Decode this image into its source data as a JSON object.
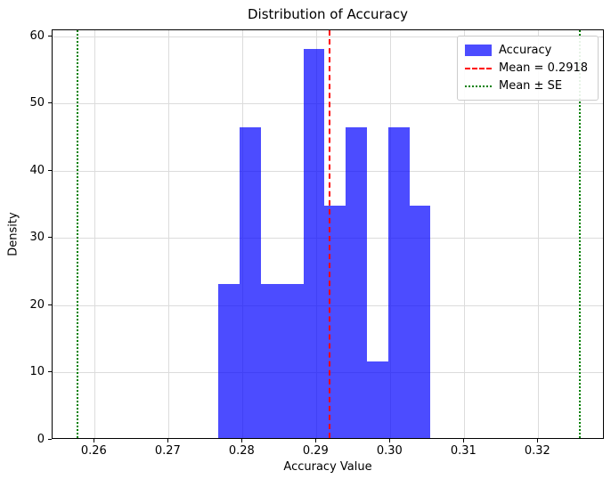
{
  "chart_data": {
    "type": "bar",
    "subtype": "histogram-density",
    "title": "Distribution of Accuracy",
    "xlabel": "Accuracy Value",
    "ylabel": "Density",
    "xlim": [
      0.2543,
      0.329
    ],
    "ylim": [
      0,
      60.93
    ],
    "xticks": [
      0.26,
      0.27,
      0.28,
      0.29,
      0.3,
      0.31,
      0.32
    ],
    "yticks": [
      0,
      10,
      20,
      30,
      40,
      50,
      60
    ],
    "grid": true,
    "grid_color": "#dcdcdc",
    "histogram": {
      "label": "Accuracy",
      "color": "#0000ff",
      "alpha": 0.7,
      "n_samples": 30,
      "bin_edges": [
        0.27675,
        0.27962,
        0.28248,
        0.28535,
        0.28822,
        0.29109,
        0.29396,
        0.29682,
        0.29969,
        0.30256,
        0.30542
      ],
      "densities": [
        23.24,
        46.47,
        23.24,
        23.24,
        58.09,
        34.86,
        46.47,
        11.62,
        46.47,
        34.86
      ],
      "counts": [
        2,
        4,
        2,
        2,
        5,
        3,
        4,
        1,
        4,
        3
      ]
    },
    "mean_line": {
      "value": 0.2918,
      "color": "#ff0000",
      "style": "dashed",
      "label": "Mean = 0.2918"
    },
    "se_lines": {
      "values": [
        0.2577,
        0.3256
      ],
      "color": "#008000",
      "style": "dotted",
      "label": "Mean ± SE"
    },
    "legend": {
      "position": "upper-right",
      "items": [
        "Accuracy",
        "Mean = 0.2918",
        "Mean ± SE"
      ]
    }
  }
}
